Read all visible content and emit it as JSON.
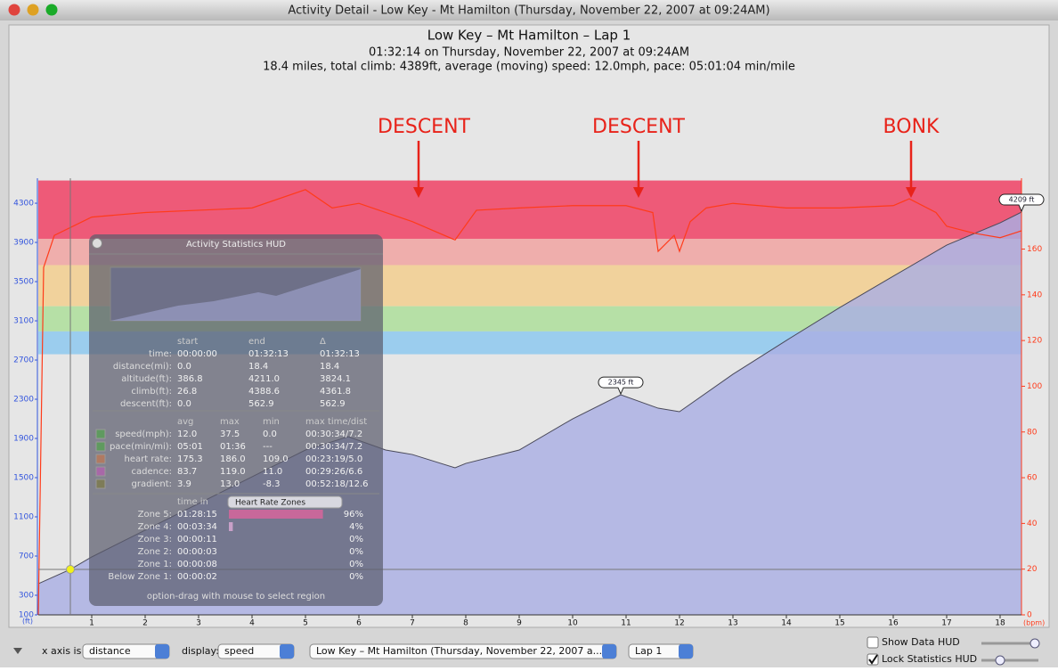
{
  "window": {
    "title": "Activity Detail - Low Key - Mt Hamilton  (Thursday, November 22, 2007 at 09:24AM)"
  },
  "header": {
    "title": "Low Key – Mt Hamilton – Lap 1",
    "subtitle": "01:32:14 on Thursday, November 22, 2007 at 09:24AM",
    "summary": "18.4 miles, total climb: 4389ft, average (moving) speed: 12.0mph, pace: 05:01:04 min/mile"
  },
  "chart": {
    "y_label": "(ft)",
    "y2_label": "(bpm)",
    "xlim": [
      0,
      18.4
    ],
    "xticks": [
      1,
      2,
      3,
      4,
      5,
      6,
      7,
      8,
      9,
      10,
      11,
      12,
      13,
      14,
      15,
      16,
      17,
      18
    ],
    "ylim": [
      100,
      4555
    ],
    "yticks": [
      100,
      300,
      700,
      1100,
      1500,
      1900,
      2300,
      2700,
      3100,
      3500,
      3900,
      4300
    ],
    "y2lim": [
      0,
      191
    ],
    "y2ticks": [
      0,
      20,
      40,
      60,
      80,
      100,
      120,
      140,
      160,
      180
    ],
    "zones": [
      {
        "range": [
          164.5,
          190
        ],
        "color": "#ee5a78"
      },
      {
        "range": [
          153,
          164.5
        ],
        "color": "#efaeac"
      },
      {
        "range": [
          135,
          153
        ],
        "color": "#f1d29c"
      },
      {
        "range": [
          124,
          135
        ],
        "color": "#b6e0a6"
      },
      {
        "range": [
          114,
          124
        ],
        "color": "#9bcdee"
      }
    ],
    "altitude": {
      "color": "#a9afe3",
      "x": [
        0,
        0.6,
        1,
        2,
        3,
        4,
        5,
        5.8,
        6.5,
        7,
        7.8,
        8,
        9,
        10,
        10.9,
        11.6,
        12,
        13,
        14,
        15,
        16,
        17,
        18,
        18.4
      ],
      "values": [
        418,
        564,
        691,
        964,
        1236,
        1509,
        1782,
        1918,
        1782,
        1736,
        1600,
        1645,
        1782,
        2100,
        2345,
        2209,
        2173,
        2555,
        2900,
        3236,
        3555,
        3873,
        4100,
        4209
      ]
    },
    "heart_rate": {
      "color": "#ff3b1a",
      "axis": "y2",
      "x": [
        0,
        0.1,
        0.3,
        1,
        2,
        3,
        4,
        5,
        5.5,
        6,
        7,
        7.8,
        8.2,
        9,
        10,
        11,
        11.5,
        11.6,
        11.9,
        12,
        12.2,
        12.5,
        13,
        14,
        15,
        16,
        16.3,
        16.8,
        17,
        17.5,
        18,
        18.4
      ],
      "values": [
        0,
        152,
        166,
        174,
        176,
        177,
        178,
        186,
        178,
        180,
        172,
        164,
        177,
        178,
        179,
        179,
        176,
        159,
        166,
        159,
        172,
        178,
        180,
        178,
        178,
        179,
        182,
        176,
        170,
        167,
        165,
        168
      ]
    },
    "callouts": [
      "2345 ft",
      "4209 ft"
    ],
    "annotations": [
      "DESCENT",
      "DESCENT",
      "BONK"
    ]
  },
  "hud": {
    "title": "Activity Statistics HUD",
    "summary": {
      "columns": [
        "start",
        "end",
        "Δ"
      ],
      "rows": [
        {
          "label": "time:",
          "cells": [
            "00:00:00",
            "01:32:13",
            "01:32:13"
          ]
        },
        {
          "label": "distance(mi):",
          "cells": [
            "0.0",
            "18.4",
            "18.4"
          ]
        },
        {
          "label": "altitude(ft):",
          "cells": [
            "386.8",
            "4211.0",
            "3824.1"
          ]
        },
        {
          "label": "climb(ft):",
          "cells": [
            "26.8",
            "4388.6",
            "4361.8"
          ]
        },
        {
          "label": "descent(ft):",
          "cells": [
            "0.0",
            "562.9",
            "562.9"
          ]
        }
      ]
    },
    "stats": {
      "columns": [
        "avg",
        "max",
        "min",
        "max time/dist"
      ],
      "rows": [
        {
          "label": "speed(mph):",
          "color": "#5f9a5f",
          "cells": [
            "12.0",
            "37.5",
            "0.0",
            "00:30:34/7.2"
          ]
        },
        {
          "label": "pace(min/mi):",
          "color": "#5f9a5f",
          "cells": [
            "05:01",
            "01:36",
            "---",
            "00:30:34/7.2"
          ]
        },
        {
          "label": "heart rate:",
          "color": "#b07a62",
          "cells": [
            "175.3",
            "186.0",
            "109.0",
            "00:23:19/5.0"
          ]
        },
        {
          "label": "cadence:",
          "color": "#a868a8",
          "cells": [
            "83.7",
            "119.0",
            "11.0",
            "00:29:26/6.6"
          ]
        },
        {
          "label": "gradient:",
          "color": "#7e7c58",
          "cells": [
            "3.9",
            "13.0",
            "-8.3",
            "00:52:18/12.6"
          ]
        }
      ]
    },
    "zones": {
      "column": "time in",
      "selector": "Heart Rate Zones",
      "rows": [
        {
          "label": "Zone 5:",
          "time": "01:28:15",
          "percent": 96,
          "percent_label": "96%"
        },
        {
          "label": "Zone 4:",
          "time": "00:03:34",
          "percent": 4,
          "percent_label": "4%"
        },
        {
          "label": "Zone 3:",
          "time": "00:00:11",
          "percent": 0,
          "percent_label": "0%"
        },
        {
          "label": "Zone 2:",
          "time": "00:00:03",
          "percent": 0,
          "percent_label": "0%"
        },
        {
          "label": "Zone 1:",
          "time": "00:00:08",
          "percent": 0,
          "percent_label": "0%"
        },
        {
          "label": "Below Zone 1:",
          "time": "00:00:02",
          "percent": 0,
          "percent_label": "0%"
        }
      ]
    },
    "footer": "option-drag with mouse to select region"
  },
  "toolbar": {
    "x_axis_label": "x axis is:",
    "x_axis_value": "distance",
    "display_label": "display:",
    "display_value": "speed",
    "activity": "Low Key – Mt Hamilton  (Thursday, November 22, 2007 a...",
    "lap": "Lap 1",
    "show_data_hud": {
      "label": "Show Data HUD",
      "checked": false
    },
    "lock_hud": {
      "label": "Lock Statistics HUD",
      "checked": true
    }
  }
}
